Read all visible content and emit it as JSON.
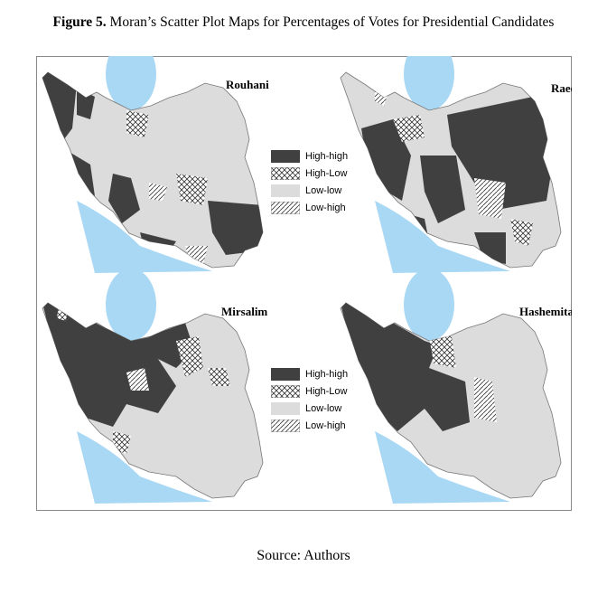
{
  "caption": {
    "label": "Figure 5.",
    "text": " Moran’s Scatter Plot Maps for Percentages of Votes for Presidential Candidates"
  },
  "panels": [
    {
      "title": "Rouhani"
    },
    {
      "title": "Raeesi"
    },
    {
      "title": "Mirsalim"
    },
    {
      "title": "Hashemitaba"
    }
  ],
  "legend": {
    "items": [
      {
        "label": "High-high",
        "fill": "#404040",
        "pattern": "solid"
      },
      {
        "label": "High-Low",
        "fill": "#ffffff",
        "pattern": "crosshatch"
      },
      {
        "label": "Low-low",
        "fill": "#dcdcdc",
        "pattern": "solid"
      },
      {
        "label": "Low-high",
        "fill": "#ffffff",
        "pattern": "diagonal"
      }
    ]
  },
  "colors": {
    "water": "#a9d8f5",
    "border": "#888888"
  },
  "source": "Source: Authors"
}
